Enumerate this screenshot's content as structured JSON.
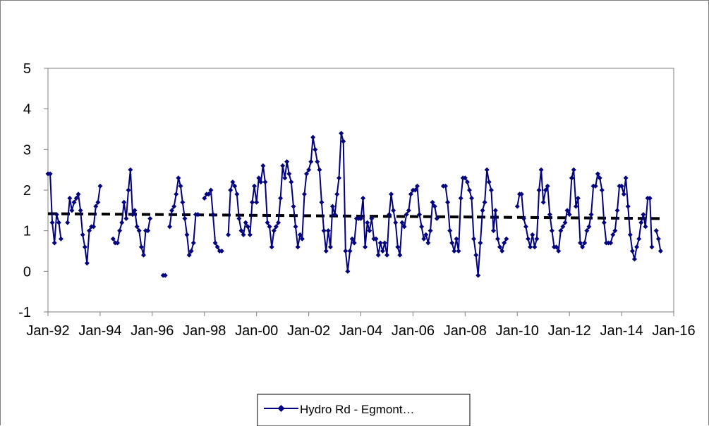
{
  "chart_data": {
    "type": "line",
    "title": "",
    "xlabel": "",
    "ylabel": "",
    "ylim": [
      -1,
      5
    ],
    "y_ticks": [
      "-1",
      "0",
      "1",
      "2",
      "3",
      "4",
      "5"
    ],
    "x_ticks": [
      "Jan-92",
      "Jan-94",
      "Jan-96",
      "Jan-98",
      "Jan-00",
      "Jan-02",
      "Jan-04",
      "Jan-06",
      "Jan-08",
      "Jan-10",
      "Jan-12",
      "Jan-14",
      "Jan-16"
    ],
    "xlim": [
      "1992-01-01",
      "2016-01-01"
    ],
    "grid": false,
    "legend_position": "bottom",
    "series": [
      {
        "name": "Hydro Rd - Egmont…",
        "color": "#000080",
        "marker": "diamond",
        "points": [
          [
            "1992-01",
            2.4
          ],
          [
            "1992-02",
            2.4
          ],
          [
            "1992-03",
            1.2
          ],
          [
            "1992-04",
            0.7
          ],
          [
            "1992-05",
            1.4
          ],
          [
            "1992-06",
            1.2
          ],
          [
            "1992-07",
            0.8
          ],
          [
            "1992-10",
            1.2
          ],
          [
            "1992-11",
            1.8
          ],
          [
            "1992-12",
            1.5
          ],
          [
            "1993-01",
            1.7
          ],
          [
            "1993-02",
            1.8
          ],
          [
            "1993-03",
            1.9
          ],
          [
            "1993-04",
            1.5
          ],
          [
            "1993-05",
            0.9
          ],
          [
            "1993-06",
            0.6
          ],
          [
            "1993-07",
            0.2
          ],
          [
            "1993-08",
            1.0
          ],
          [
            "1993-09",
            1.1
          ],
          [
            "1993-10",
            1.1
          ],
          [
            "1993-11",
            1.6
          ],
          [
            "1993-12",
            1.7
          ],
          [
            "1994-01",
            2.1
          ],
          [
            "1994-07",
            0.8
          ],
          [
            "1994-08",
            0.7
          ],
          [
            "1994-09",
            0.7
          ],
          [
            "1994-10",
            1.0
          ],
          [
            "1994-11",
            1.2
          ],
          [
            "1994-12",
            1.7
          ],
          [
            "1995-01",
            1.3
          ],
          [
            "1995-02",
            2.0
          ],
          [
            "1995-03",
            2.5
          ],
          [
            "1995-04",
            1.4
          ],
          [
            "1995-05",
            1.5
          ],
          [
            "1995-06",
            1.1
          ],
          [
            "1995-07",
            1.0
          ],
          [
            "1995-08",
            0.6
          ],
          [
            "1995-09",
            0.4
          ],
          [
            "1995-10",
            1.0
          ],
          [
            "1995-11",
            1.0
          ],
          [
            "1995-12",
            1.3
          ],
          [
            "1996-06",
            -0.1
          ],
          [
            "1996-07",
            -0.1
          ],
          [
            "1996-09",
            1.1
          ],
          [
            "1996-10",
            1.5
          ],
          [
            "1996-11",
            1.6
          ],
          [
            "1996-12",
            1.9
          ],
          [
            "1997-01",
            2.3
          ],
          [
            "1997-02",
            2.1
          ],
          [
            "1997-03",
            1.7
          ],
          [
            "1997-04",
            1.3
          ],
          [
            "1997-05",
            0.9
          ],
          [
            "1997-06",
            0.4
          ],
          [
            "1997-07",
            0.5
          ],
          [
            "1997-08",
            0.7
          ],
          [
            "1997-09",
            1.4
          ],
          [
            "1997-10",
            1.4
          ],
          [
            "1998-01",
            1.8
          ],
          [
            "1998-02",
            1.9
          ],
          [
            "1998-03",
            1.9
          ],
          [
            "1998-04",
            2.0
          ],
          [
            "1998-05",
            1.4
          ],
          [
            "1998-06",
            0.7
          ],
          [
            "1998-07",
            0.6
          ],
          [
            "1998-08",
            0.5
          ],
          [
            "1998-09",
            0.5
          ],
          [
            "1998-12",
            0.9
          ],
          [
            "1999-01",
            2.0
          ],
          [
            "1999-02",
            2.2
          ],
          [
            "1999-03",
            2.1
          ],
          [
            "1999-04",
            1.9
          ],
          [
            "1999-05",
            1.3
          ],
          [
            "1999-06",
            1.0
          ],
          [
            "1999-07",
            0.9
          ],
          [
            "1999-08",
            1.2
          ],
          [
            "1999-09",
            1.1
          ],
          [
            "1999-10",
            0.9
          ],
          [
            "1999-11",
            1.7
          ],
          [
            "1999-12",
            2.1
          ],
          [
            "2000-01",
            1.7
          ],
          [
            "2000-02",
            2.3
          ],
          [
            "2000-03",
            2.2
          ],
          [
            "2000-04",
            2.6
          ],
          [
            "2000-05",
            2.2
          ],
          [
            "2000-06",
            1.2
          ],
          [
            "2000-07",
            1.1
          ],
          [
            "2000-08",
            0.6
          ],
          [
            "2000-09",
            1.0
          ],
          [
            "2000-10",
            1.1
          ],
          [
            "2000-11",
            1.2
          ],
          [
            "2000-12",
            1.8
          ],
          [
            "2001-01",
            2.6
          ],
          [
            "2001-02",
            2.3
          ],
          [
            "2001-03",
            2.7
          ],
          [
            "2001-04",
            2.4
          ],
          [
            "2001-05",
            2.2
          ],
          [
            "2001-06",
            1.6
          ],
          [
            "2001-07",
            1.1
          ],
          [
            "2001-08",
            0.6
          ],
          [
            "2001-09",
            0.9
          ],
          [
            "2001-10",
            0.8
          ],
          [
            "2001-11",
            1.9
          ],
          [
            "2001-12",
            2.4
          ],
          [
            "2002-01",
            2.5
          ],
          [
            "2002-02",
            2.7
          ],
          [
            "2002-03",
            3.3
          ],
          [
            "2002-04",
            3.0
          ],
          [
            "2002-05",
            2.7
          ],
          [
            "2002-06",
            2.5
          ],
          [
            "2002-07",
            1.7
          ],
          [
            "2002-08",
            1.0
          ],
          [
            "2002-09",
            0.5
          ],
          [
            "2002-10",
            1.0
          ],
          [
            "2002-11",
            0.6
          ],
          [
            "2002-12",
            1.6
          ],
          [
            "2003-01",
            1.4
          ],
          [
            "2003-02",
            1.9
          ],
          [
            "2003-03",
            2.3
          ],
          [
            "2003-04",
            3.4
          ],
          [
            "2003-05",
            3.2
          ],
          [
            "2003-06",
            0.5
          ],
          [
            "2003-07",
            0.0
          ],
          [
            "2003-08",
            0.5
          ],
          [
            "2003-09",
            0.8
          ],
          [
            "2003-10",
            0.7
          ],
          [
            "2003-11",
            1.3
          ],
          [
            "2003-12",
            1.3
          ],
          [
            "2004-01",
            1.3
          ],
          [
            "2004-02",
            1.8
          ],
          [
            "2004-03",
            0.6
          ],
          [
            "2004-04",
            1.2
          ],
          [
            "2004-05",
            1.0
          ],
          [
            "2004-06",
            1.3
          ],
          [
            "2004-07",
            0.8
          ],
          [
            "2004-08",
            0.8
          ],
          [
            "2004-09",
            0.4
          ],
          [
            "2004-10",
            0.7
          ],
          [
            "2004-11",
            0.5
          ],
          [
            "2004-12",
            0.7
          ],
          [
            "2005-01",
            0.4
          ],
          [
            "2005-02",
            1.4
          ],
          [
            "2005-03",
            1.9
          ],
          [
            "2005-04",
            1.5
          ],
          [
            "2005-05",
            1.2
          ],
          [
            "2005-06",
            0.6
          ],
          [
            "2005-07",
            0.4
          ],
          [
            "2005-08",
            1.2
          ],
          [
            "2005-09",
            1.1
          ],
          [
            "2005-10",
            1.4
          ],
          [
            "2005-11",
            1.5
          ],
          [
            "2005-12",
            1.9
          ],
          [
            "2006-01",
            2.0
          ],
          [
            "2006-02",
            2.0
          ],
          [
            "2006-03",
            2.1
          ],
          [
            "2006-04",
            1.4
          ],
          [
            "2006-05",
            1.1
          ],
          [
            "2006-06",
            0.8
          ],
          [
            "2006-07",
            0.9
          ],
          [
            "2006-08",
            0.7
          ],
          [
            "2006-09",
            1.0
          ],
          [
            "2006-10",
            1.7
          ],
          [
            "2006-11",
            1.6
          ],
          [
            "2006-12",
            1.3
          ],
          [
            "2007-03",
            2.1
          ],
          [
            "2007-04",
            2.1
          ],
          [
            "2007-05",
            1.7
          ],
          [
            "2007-06",
            1.0
          ],
          [
            "2007-07",
            0.7
          ],
          [
            "2007-08",
            0.5
          ],
          [
            "2007-09",
            0.8
          ],
          [
            "2007-10",
            0.5
          ],
          [
            "2007-11",
            1.8
          ],
          [
            "2007-12",
            2.3
          ],
          [
            "2008-01",
            2.3
          ],
          [
            "2008-02",
            2.2
          ],
          [
            "2008-03",
            2.0
          ],
          [
            "2008-04",
            1.8
          ],
          [
            "2008-05",
            0.8
          ],
          [
            "2008-06",
            0.4
          ],
          [
            "2008-07",
            -0.1
          ],
          [
            "2008-08",
            0.7
          ],
          [
            "2008-09",
            1.5
          ],
          [
            "2008-10",
            1.7
          ],
          [
            "2008-11",
            2.5
          ],
          [
            "2008-12",
            2.2
          ],
          [
            "2009-01",
            2.0
          ],
          [
            "2009-02",
            1.0
          ],
          [
            "2009-03",
            1.5
          ],
          [
            "2009-04",
            0.8
          ],
          [
            "2009-05",
            0.6
          ],
          [
            "2009-06",
            0.5
          ],
          [
            "2009-07",
            0.7
          ],
          [
            "2009-08",
            0.8
          ],
          [
            "2010-01",
            1.6
          ],
          [
            "2010-02",
            1.9
          ],
          [
            "2010-03",
            1.9
          ],
          [
            "2010-04",
            1.3
          ],
          [
            "2010-05",
            1.1
          ],
          [
            "2010-06",
            0.8
          ],
          [
            "2010-07",
            0.6
          ],
          [
            "2010-08",
            0.9
          ],
          [
            "2010-09",
            0.6
          ],
          [
            "2010-10",
            0.8
          ],
          [
            "2010-11",
            2.0
          ],
          [
            "2010-12",
            2.5
          ],
          [
            "2011-01",
            1.7
          ],
          [
            "2011-02",
            2.0
          ],
          [
            "2011-03",
            2.1
          ],
          [
            "2011-04",
            1.4
          ],
          [
            "2011-05",
            1.0
          ],
          [
            "2011-06",
            0.6
          ],
          [
            "2011-07",
            0.6
          ],
          [
            "2011-08",
            0.5
          ],
          [
            "2011-09",
            1.0
          ],
          [
            "2011-10",
            1.1
          ],
          [
            "2011-11",
            1.2
          ],
          [
            "2011-12",
            1.5
          ],
          [
            "2012-01",
            1.4
          ],
          [
            "2012-02",
            2.3
          ],
          [
            "2012-03",
            2.5
          ],
          [
            "2012-04",
            1.6
          ],
          [
            "2012-05",
            1.8
          ],
          [
            "2012-06",
            0.7
          ],
          [
            "2012-07",
            0.6
          ],
          [
            "2012-08",
            0.7
          ],
          [
            "2012-09",
            1.0
          ],
          [
            "2012-10",
            1.1
          ],
          [
            "2012-11",
            1.4
          ],
          [
            "2012-12",
            2.1
          ],
          [
            "2013-01",
            2.1
          ],
          [
            "2013-02",
            2.4
          ],
          [
            "2013-03",
            2.3
          ],
          [
            "2013-04",
            2.0
          ],
          [
            "2013-05",
            1.2
          ],
          [
            "2013-06",
            0.7
          ],
          [
            "2013-07",
            0.7
          ],
          [
            "2013-08",
            0.7
          ],
          [
            "2013-09",
            0.9
          ],
          [
            "2013-10",
            1.0
          ],
          [
            "2013-11",
            1.5
          ],
          [
            "2013-12",
            2.1
          ],
          [
            "2014-01",
            2.1
          ],
          [
            "2014-02",
            1.9
          ],
          [
            "2014-03",
            2.3
          ],
          [
            "2014-04",
            1.6
          ],
          [
            "2014-05",
            0.9
          ],
          [
            "2014-06",
            0.5
          ],
          [
            "2014-07",
            0.3
          ],
          [
            "2014-08",
            0.6
          ],
          [
            "2014-09",
            0.8
          ],
          [
            "2014-10",
            1.2
          ],
          [
            "2014-11",
            1.4
          ],
          [
            "2014-12",
            1.1
          ],
          [
            "2015-01",
            1.8
          ],
          [
            "2015-02",
            1.8
          ],
          [
            "2015-03",
            0.6
          ],
          [
            "2015-05",
            1.0
          ],
          [
            "2015-06",
            0.8
          ],
          [
            "2015-07",
            0.5
          ]
        ]
      }
    ],
    "trendline": {
      "color": "#000000",
      "style": "dashed",
      "start": [
        "1992-01",
        1.42
      ],
      "end": [
        "2015-07",
        1.3
      ]
    }
  }
}
